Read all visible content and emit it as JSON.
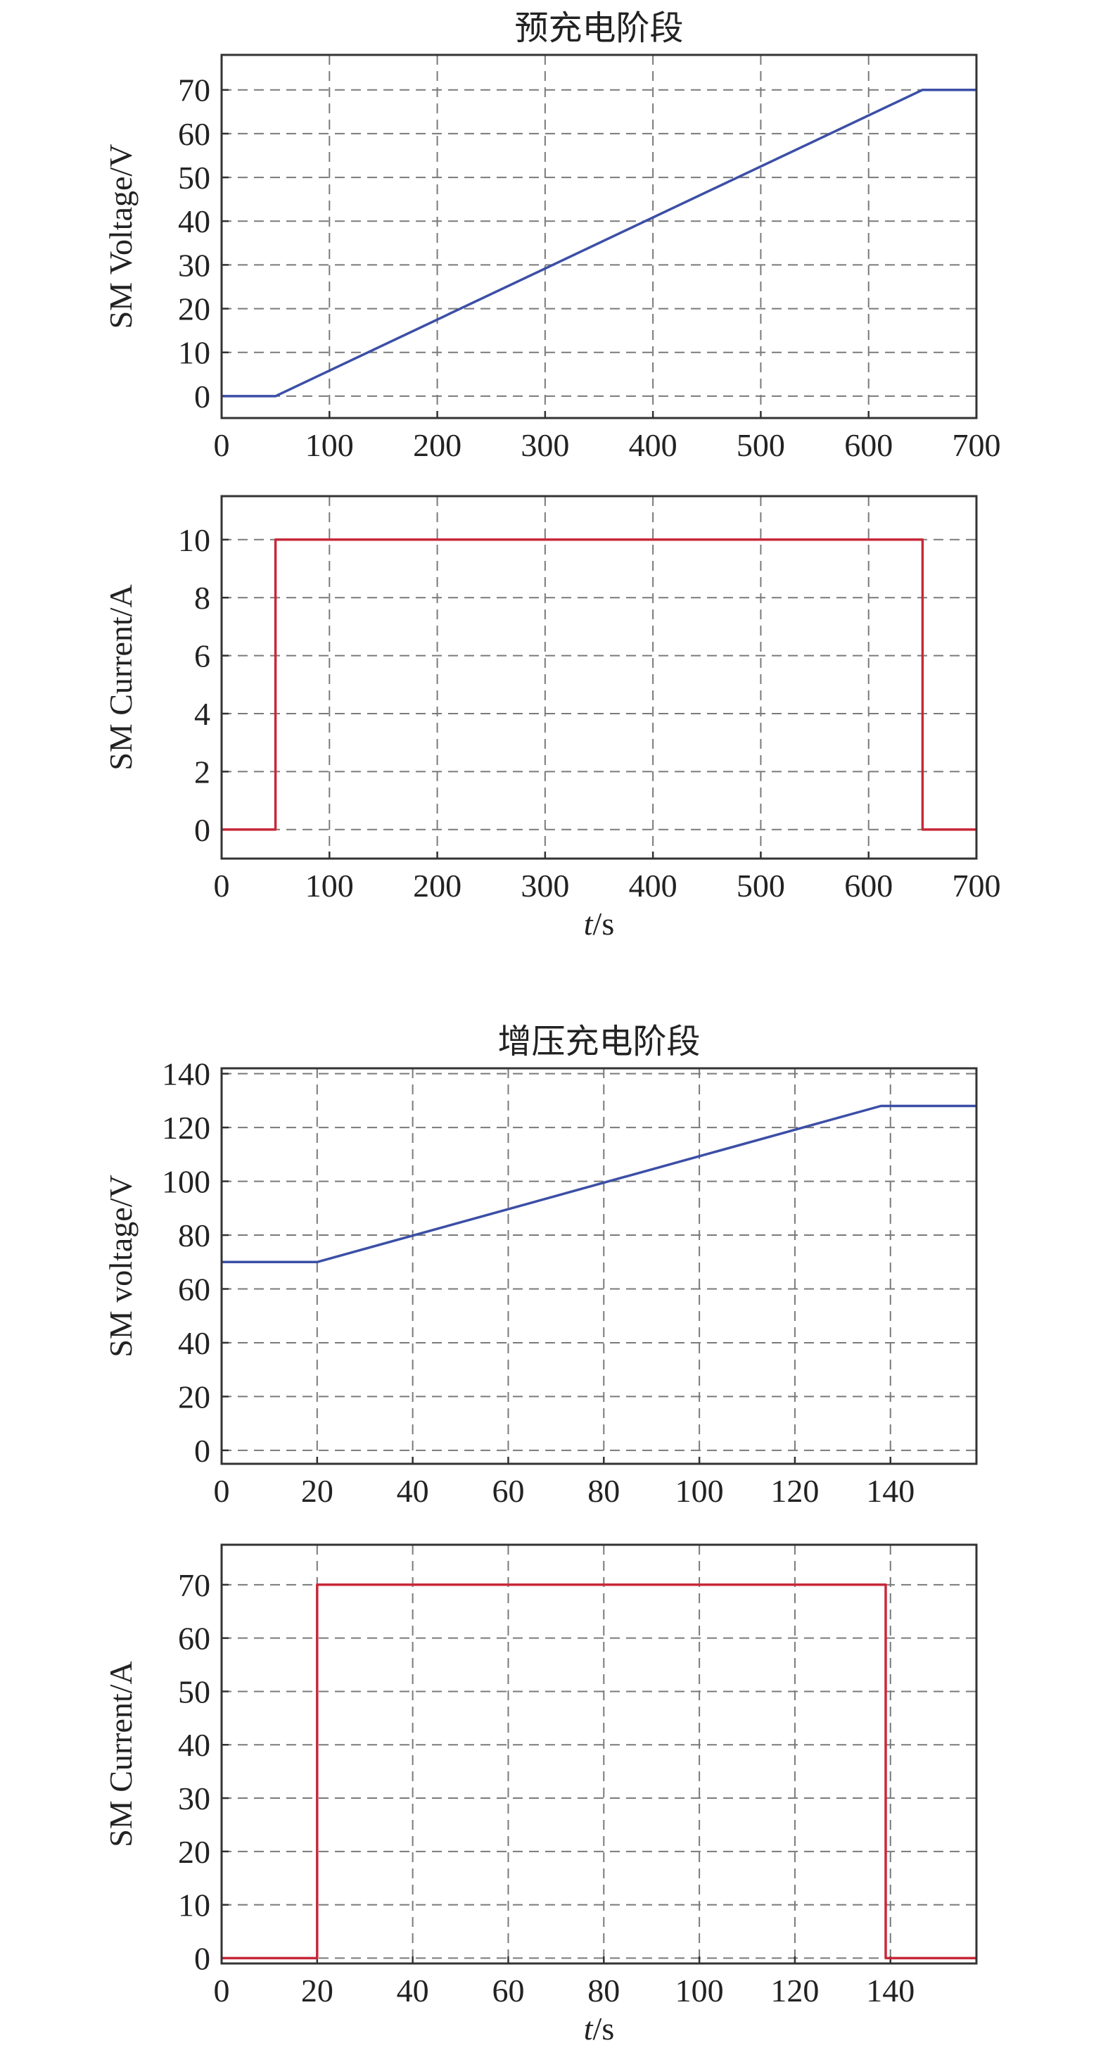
{
  "chart_data": [
    {
      "type": "line",
      "title": "预充电阶段",
      "xlabel": "",
      "ylabel": "SM Voltage/V",
      "xlim": [
        0,
        700
      ],
      "ylim": [
        -5,
        78
      ],
      "xticks": [
        0,
        100,
        200,
        300,
        400,
        500,
        600,
        700
      ],
      "yticks": [
        0,
        10,
        20,
        30,
        40,
        50,
        60,
        70
      ],
      "grid": true,
      "colors": {
        "line": "#3b4fa6"
      },
      "series": [
        {
          "x": [
            0,
            50,
            650,
            700
          ],
          "y": [
            0,
            0,
            70,
            70
          ]
        }
      ]
    },
    {
      "type": "line",
      "title": "",
      "xlabel": "",
      "xlabel_italic": "t",
      "xlabel_rest": "/s",
      "ylabel": "SM Current/A",
      "xlim": [
        0,
        700
      ],
      "ylim": [
        -1,
        11.5
      ],
      "xticks": [
        0,
        100,
        200,
        300,
        400,
        500,
        600,
        700
      ],
      "yticks": [
        0,
        2,
        4,
        6,
        8,
        10
      ],
      "grid": true,
      "colors": {
        "line": "#c8283a"
      },
      "series": [
        {
          "x": [
            0,
            50,
            50,
            650,
            650,
            700
          ],
          "y": [
            0,
            0,
            10,
            10,
            0,
            0
          ]
        }
      ]
    },
    {
      "type": "line",
      "title": "增压充电阶段",
      "xlabel": "",
      "ylabel": "SM voltage/V",
      "xlim": [
        0,
        158
      ],
      "ylim": [
        -5,
        142
      ],
      "xticks": [
        0,
        20,
        40,
        60,
        80,
        100,
        120,
        140
      ],
      "yticks": [
        0,
        20,
        40,
        60,
        80,
        100,
        120,
        140
      ],
      "grid": true,
      "colors": {
        "line": "#3b4fa6"
      },
      "series": [
        {
          "x": [
            0,
            20,
            138,
            158
          ],
          "y": [
            70,
            70,
            128,
            128
          ]
        }
      ]
    },
    {
      "type": "line",
      "title": "",
      "xlabel": "",
      "xlabel_italic": "t",
      "xlabel_rest": "/s",
      "ylabel": "SM Current/A",
      "xlim": [
        0,
        158
      ],
      "ylim": [
        -1,
        77.5
      ],
      "xticks": [
        0,
        20,
        40,
        60,
        80,
        100,
        120,
        140
      ],
      "yticks": [
        0,
        10,
        20,
        30,
        40,
        50,
        60,
        70
      ],
      "grid": true,
      "colors": {
        "line": "#c8283a"
      },
      "series": [
        {
          "x": [
            0,
            20,
            20,
            139,
            139,
            158
          ],
          "y": [
            0,
            0,
            70,
            70,
            0,
            0
          ]
        }
      ]
    }
  ]
}
